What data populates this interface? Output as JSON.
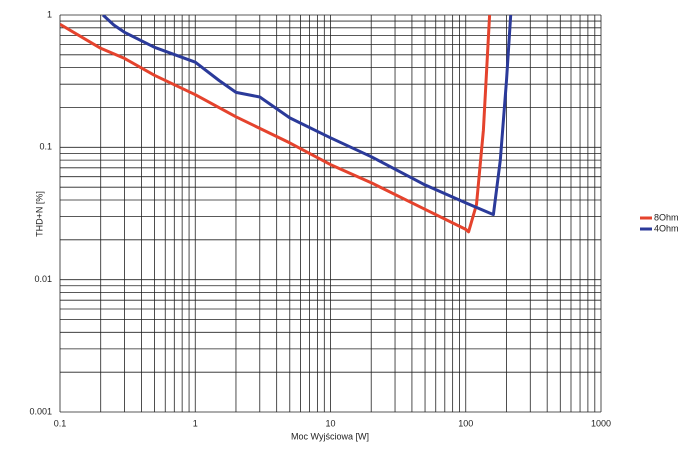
{
  "chart_data": {
    "type": "line",
    "x_label": "Moc Wyjściowa [W]",
    "y_label": "THD+N [%]",
    "x_log": true,
    "y_log": true,
    "grid": true,
    "minor_grid": true,
    "legend": "right",
    "xlim": [
      0.1,
      1000
    ],
    "xticks": [
      0.1,
      1,
      10,
      100,
      1000
    ],
    "ylim": [
      0.001,
      1
    ],
    "yticks": [
      0.001,
      0.01,
      0.1,
      1
    ],
    "series": [
      {
        "name": "8Ohm",
        "color": "#e5432d",
        "x": [
          0.1,
          0.2,
          0.3,
          0.5,
          1,
          2,
          5,
          10,
          20,
          50,
          100,
          105,
          120,
          135,
          150
        ],
        "values": [
          0.85,
          0.56,
          0.47,
          0.35,
          0.25,
          0.17,
          0.108,
          0.074,
          0.054,
          0.034,
          0.024,
          0.023,
          0.037,
          0.135,
          1
        ]
      },
      {
        "name": "4Ohm",
        "color": "#2b3a9a",
        "x": [
          0.208,
          0.25,
          0.3,
          0.5,
          1,
          1.5,
          2,
          3,
          5,
          10,
          20,
          50,
          100,
          160,
          180,
          200,
          215
        ],
        "values": [
          1,
          0.84,
          0.74,
          0.57,
          0.44,
          0.32,
          0.26,
          0.24,
          0.167,
          0.118,
          0.085,
          0.052,
          0.038,
          0.031,
          0.08,
          0.32,
          1
        ]
      }
    ]
  }
}
